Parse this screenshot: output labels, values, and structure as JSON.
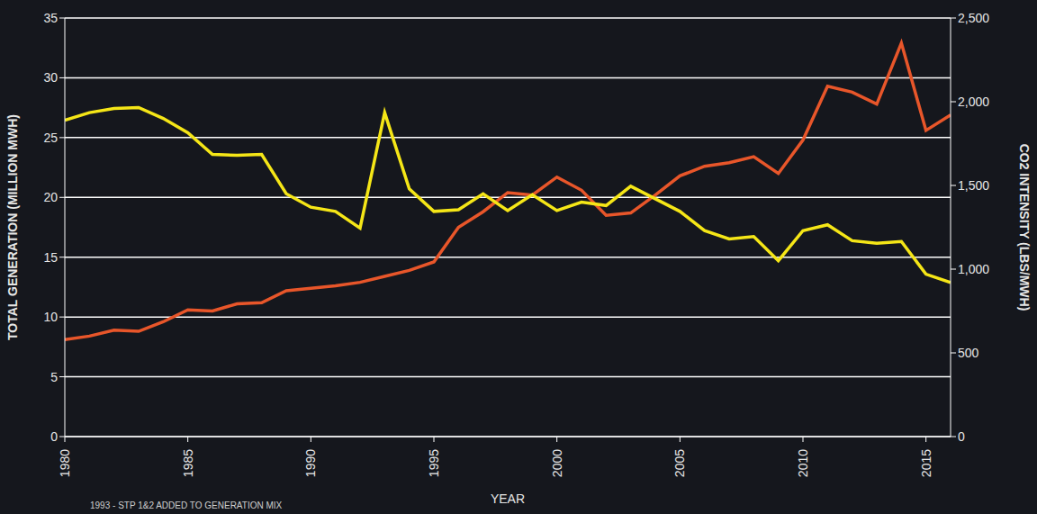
{
  "chart_data": {
    "type": "line",
    "xlabel": "YEAR",
    "ylabel": "TOTAL GENERATION (MILLION MWH)",
    "y2label": "CO2 INTENSITY (LBS/MWH)",
    "annotations": [
      "1993 - STP 1&2 ADDED TO GENERATION MIX"
    ],
    "grid": true,
    "x": [
      1980,
      1981,
      1982,
      1983,
      1984,
      1985,
      1986,
      1987,
      1988,
      1989,
      1990,
      1991,
      1992,
      1993,
      1994,
      1995,
      1996,
      1997,
      1998,
      1999,
      2000,
      2001,
      2002,
      2003,
      2004,
      2005,
      2006,
      2007,
      2008,
      2009,
      2010,
      2011,
      2012,
      2013,
      2014,
      2015,
      2016
    ],
    "series": [
      {
        "color": "#e8562a",
        "axis": "y",
        "values": [
          8.1,
          8.4,
          8.9,
          8.8,
          9.6,
          10.6,
          10.5,
          11.1,
          11.2,
          12.2,
          12.4,
          12.6,
          12.9,
          13.4,
          13.9,
          14.6,
          17.5,
          18.8,
          20.4,
          20.2,
          21.7,
          20.6,
          18.5,
          18.7,
          20.2,
          21.8,
          22.6,
          22.9,
          23.4,
          22.0,
          24.8,
          29.3,
          28.8,
          27.8,
          32.9,
          25.6,
          26.9
        ]
      },
      {
        "color": "#f5e617",
        "axis": "y2",
        "values": [
          1890,
          1935,
          1960,
          1965,
          1900,
          1815,
          1685,
          1680,
          1685,
          1450,
          1370,
          1345,
          1245,
          1935,
          1480,
          1345,
          1355,
          1450,
          1350,
          1445,
          1350,
          1400,
          1380,
          1495,
          1420,
          1345,
          1230,
          1180,
          1195,
          1050,
          1230,
          1265,
          1170,
          1155,
          1165,
          970,
          920
        ]
      }
    ],
    "xlim": [
      1980,
      2016
    ],
    "xticks": [
      1980,
      1985,
      1990,
      1995,
      2000,
      2005,
      2010,
      2015
    ],
    "ylim": [
      0,
      35
    ],
    "yticks": [
      0,
      5,
      10,
      15,
      20,
      25,
      30,
      35
    ],
    "y2lim": [
      0,
      2500
    ],
    "y2ticks": [
      0,
      500,
      {
        "value": 1000,
        "label": "1,000"
      },
      {
        "value": 1500,
        "label": "1,500"
      },
      {
        "value": 2000,
        "label": "2,000"
      },
      {
        "value": 2500,
        "label": "2,500"
      }
    ]
  }
}
